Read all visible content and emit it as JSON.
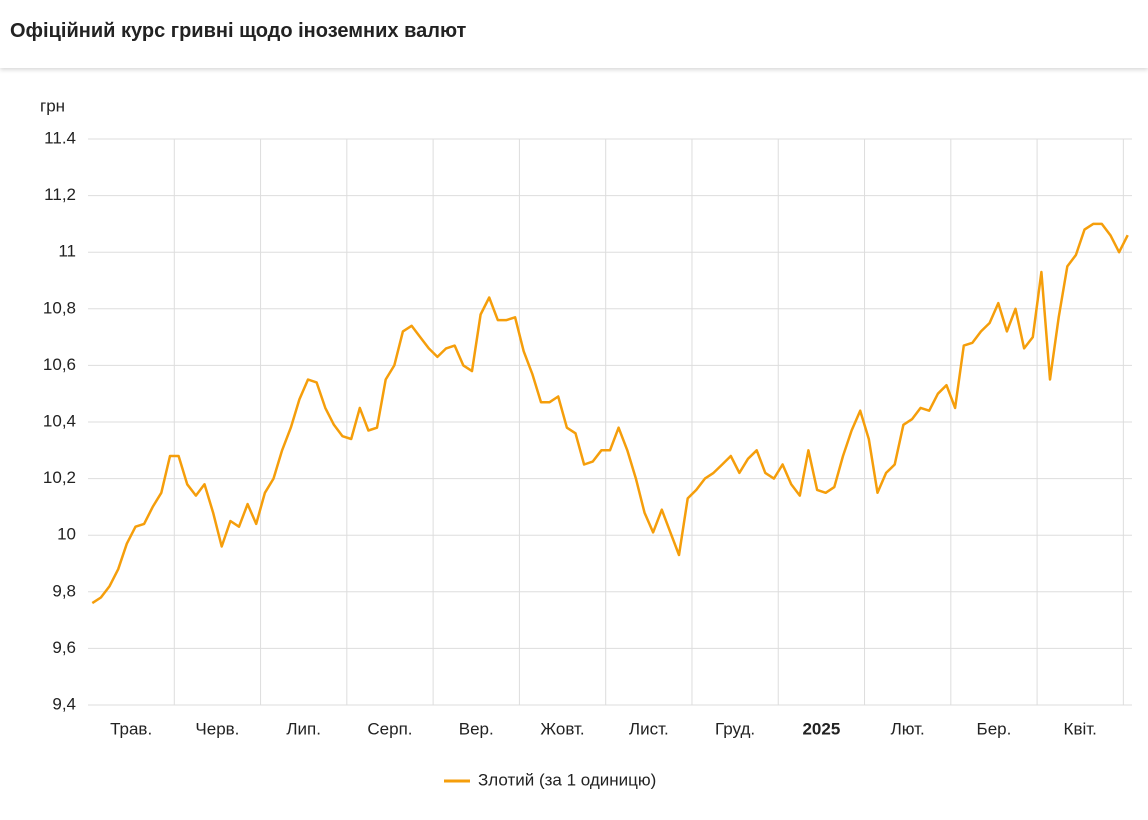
{
  "chart_data": {
    "type": "line",
    "title": "Офіційний курс гривні щодо іноземних валют",
    "ylabel": "грн",
    "categories": [
      null,
      null,
      null,
      null,
      null,
      "Трав.",
      null,
      null,
      null,
      null,
      null,
      null,
      null,
      null,
      null,
      "Черв.",
      null,
      null,
      null,
      null,
      null,
      null,
      null,
      null,
      null,
      "Лип.",
      null,
      null,
      null,
      null,
      null,
      null,
      null,
      null,
      null,
      "Серп.",
      null,
      null,
      null,
      null,
      null,
      null,
      null,
      null,
      null,
      "Вер.",
      null,
      null,
      null,
      null,
      null,
      null,
      null,
      null,
      null,
      "Жовт.",
      null,
      null,
      null,
      null,
      null,
      null,
      null,
      null,
      null,
      "Лист.",
      null,
      null,
      null,
      null,
      null,
      null,
      null,
      null,
      null,
      "Груд.",
      null,
      null,
      null,
      null,
      null,
      null,
      null,
      null,
      null,
      "2025",
      null,
      null,
      null,
      null,
      null,
      null,
      null,
      null,
      null,
      "Лют.",
      null,
      null,
      null,
      null,
      null,
      null,
      null,
      null,
      null,
      "Бер.",
      null,
      null,
      null,
      null,
      null,
      null,
      null,
      null,
      null,
      "Квіт.",
      null,
      null,
      null,
      null,
      null
    ],
    "series": [
      {
        "name": "Злотий (за 1 одиницю)",
        "color": "#f59e0b",
        "values": [
          9.76,
          9.78,
          9.82,
          9.88,
          9.97,
          10.03,
          10.04,
          10.1,
          10.15,
          10.28,
          10.28,
          10.18,
          10.14,
          10.18,
          10.08,
          9.96,
          10.05,
          10.03,
          10.11,
          10.04,
          10.15,
          10.2,
          10.3,
          10.38,
          10.48,
          10.55,
          10.54,
          10.45,
          10.39,
          10.35,
          10.34,
          10.45,
          10.37,
          10.38,
          10.55,
          10.6,
          10.72,
          10.74,
          10.7,
          10.66,
          10.63,
          10.66,
          10.67,
          10.6,
          10.58,
          10.78,
          10.84,
          10.76,
          10.76,
          10.77,
          10.65,
          10.57,
          10.47,
          10.47,
          10.49,
          10.38,
          10.36,
          10.25,
          10.26,
          10.3,
          10.3,
          10.38,
          10.3,
          10.2,
          10.08,
          10.01,
          10.09,
          10.01,
          9.93,
          10.13,
          10.16,
          10.2,
          10.22,
          10.25,
          10.28,
          10.22,
          10.27,
          10.3,
          10.22,
          10.2,
          10.25,
          10.18,
          10.14,
          10.3,
          10.16,
          10.15,
          10.17,
          10.28,
          10.37,
          10.44,
          10.34,
          10.15,
          10.22,
          10.25,
          10.39,
          10.41,
          10.45,
          10.44,
          10.5,
          10.53,
          10.45,
          10.67,
          10.68,
          10.72,
          10.75,
          10.82,
          10.72,
          10.8,
          10.66,
          10.7,
          10.93,
          10.55,
          10.77,
          10.95,
          10.99,
          11.08,
          11.1,
          11.1,
          11.06,
          11.0,
          11.06
        ]
      }
    ],
    "ylim": [
      9.4,
      11.4
    ],
    "yticks": [
      {
        "value": 9.4,
        "label": "9,4"
      },
      {
        "value": 9.6,
        "label": "9,6"
      },
      {
        "value": 9.8,
        "label": "9,8"
      },
      10,
      {
        "value": 10.2,
        "label": "10,2"
      },
      {
        "value": 10.4,
        "label": "10,4"
      },
      {
        "value": 10.6,
        "label": "10,6"
      },
      {
        "value": 10.8,
        "label": "10,8"
      },
      11,
      {
        "value": 11.2,
        "label": "11,2"
      },
      11.4
    ],
    "grid": true,
    "legend": "bottom"
  }
}
